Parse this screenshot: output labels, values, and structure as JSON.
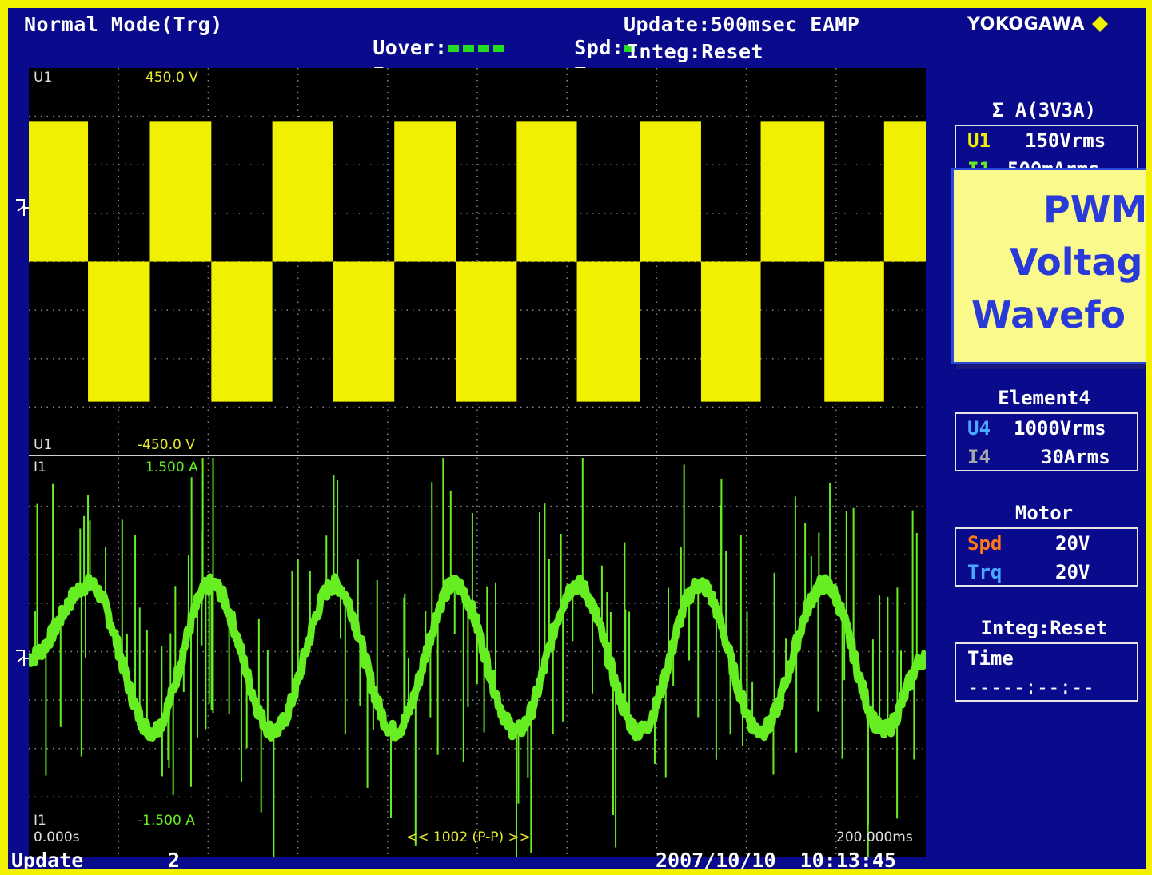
{
  "header": {
    "mode": "Normal Mode(Trg)",
    "uover_label": "Uover:",
    "iover_label": "Iover:",
    "spd_label": "Spd:",
    "trq_label": "Trq:",
    "update_text": "Update:500msec EAMP",
    "integ_text": "Integ:Reset",
    "brand": "YOKOGAWA",
    "indicator_color": "#22dd22"
  },
  "side_panel": {
    "sigma_title": "Σ A(3V3A)",
    "sigma_rows": [
      {
        "label": "U1",
        "value": "150Vrms"
      },
      {
        "label": "I1",
        "value": "500mArms"
      }
    ],
    "element_title": "Element4",
    "element_rows": [
      {
        "label": "U4",
        "value": "1000Vrms"
      },
      {
        "label": "I4",
        "value": "30Arms"
      }
    ],
    "motor_title": "Motor",
    "motor_rows": [
      {
        "label": "Spd",
        "value": "20V"
      },
      {
        "label": "Trq",
        "value": "20V"
      }
    ],
    "integ_title": "Integ:Reset",
    "time_label": "Time",
    "time_value": "-----:--:--"
  },
  "callout": {
    "line1": "PWM",
    "line2": "Voltag",
    "line3": "Wavefo"
  },
  "chart_data": {
    "type": "line",
    "x_start_label": "0.000s",
    "x_end_label": "200.000ms",
    "center_label": "<< 1002 (P-P) >>",
    "grid": true,
    "panels": [
      {
        "name": "U1",
        "top_label": "450.0 V",
        "bottom_label": "-450.0 V",
        "color": "#f0f000",
        "ylim": [
          -450,
          450
        ],
        "waveform": "PWM square wave, period about 67.5 ms",
        "x_ms": [
          0,
          13.2,
          13.2,
          27.0,
          27.0,
          40.7,
          40.7,
          54.3,
          54.3,
          67.8,
          67.8,
          81.5,
          81.5,
          95.3,
          95.3,
          108.8,
          108.8,
          122.2,
          122.2,
          136.2,
          136.2,
          149.9,
          149.9,
          163.2,
          163.2,
          177.4,
          177.4,
          190.7,
          190.7,
          200.0
        ],
        "upper_band_V": [
          325,
          0
        ],
        "lower_band_V": [
          0,
          -325
        ]
      },
      {
        "name": "I1",
        "top_label": "1.500 A",
        "bottom_label": "-1.500 A",
        "color": "#66ee22",
        "ylim": [
          -1.5,
          1.5
        ],
        "waveform": "sinusoid with PWM switching spikes",
        "x_ms": [
          0,
          13.5,
          27.5,
          40.7,
          54.6,
          68.2,
          81.6,
          95.0,
          108.8,
          122.2,
          136.2,
          149.6,
          163.2,
          177.4,
          190.7,
          200.0
        ],
        "y_A": [
          0.0,
          0.55,
          -0.55,
          0.55,
          -0.55,
          0.55,
          -0.55,
          0.55,
          -0.55,
          0.55,
          -0.55,
          0.55,
          -0.55,
          0.55,
          -0.55,
          0.0
        ]
      }
    ]
  },
  "footer": {
    "update_label": "Update",
    "update_count": "2",
    "datetime": "2007/10/10  10:13:45"
  }
}
